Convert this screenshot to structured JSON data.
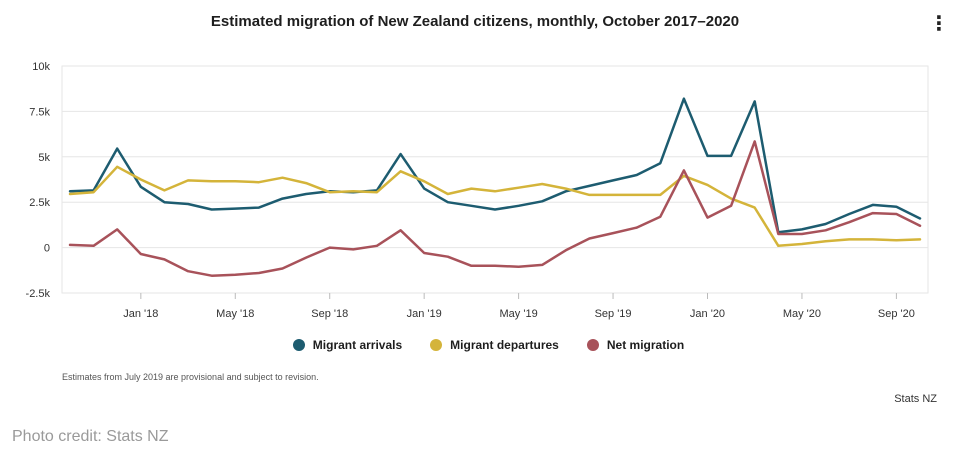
{
  "menu_icon": "⋮",
  "legend": [
    {
      "label": "Migrant arrivals",
      "color": "#1d5c70"
    },
    {
      "label": "Migrant departures",
      "color": "#d4b43a"
    },
    {
      "label": "Net migration",
      "color": "#a8525a"
    }
  ],
  "note": "Estimates from July 2019 are provisional and subject to revision.",
  "source": "Stats NZ",
  "photo_credit": "Photo credit: Stats NZ",
  "chart_data": {
    "type": "line",
    "title": "Estimated migration of New Zealand citizens, monthly, October 2017–2020",
    "xlabel": "",
    "ylabel": "",
    "ylim": [
      -2500,
      10000
    ],
    "yticks": [
      -2500,
      0,
      2500,
      5000,
      7500,
      10000
    ],
    "ytick_labels": [
      "-2.5k",
      "0",
      "2.5k",
      "5k",
      "7.5k",
      "10k"
    ],
    "xtick_labels": [
      "Jan '18",
      "May '18",
      "Sep '18",
      "Jan '19",
      "May '19",
      "Sep '19",
      "Jan '20",
      "May '20",
      "Sep '20"
    ],
    "xtick_month_index": [
      3,
      7,
      11,
      15,
      19,
      23,
      27,
      31,
      35
    ],
    "x": [
      "Oct 2017",
      "Nov 2017",
      "Dec 2017",
      "Jan 2018",
      "Feb 2018",
      "Mar 2018",
      "Apr 2018",
      "May 2018",
      "Jun 2018",
      "Jul 2018",
      "Aug 2018",
      "Sep 2018",
      "Oct 2018",
      "Nov 2018",
      "Dec 2018",
      "Jan 2019",
      "Feb 2019",
      "Mar 2019",
      "Apr 2019",
      "May 2019",
      "Jun 2019",
      "Jul 2019",
      "Aug 2019",
      "Sep 2019",
      "Oct 2019",
      "Nov 2019",
      "Dec 2019",
      "Jan 2020",
      "Feb 2020",
      "Mar 2020",
      "Apr 2020",
      "May 2020",
      "Jun 2020",
      "Jul 2020",
      "Aug 2020",
      "Sep 2020",
      "Oct 2020"
    ],
    "series": [
      {
        "name": "Migrant arrivals",
        "color": "#1d5c70",
        "values": [
          3100,
          3150,
          5450,
          3350,
          2500,
          2400,
          2100,
          2150,
          2200,
          2700,
          2950,
          3100,
          3050,
          3150,
          5150,
          3250,
          2500,
          2300,
          2100,
          2300,
          2550,
          3100,
          3400,
          3700,
          4000,
          4650,
          8200,
          5050,
          5050,
          8050,
          850,
          1000,
          1300,
          1850,
          2350,
          2250,
          1600
        ]
      },
      {
        "name": "Migrant departures",
        "color": "#d4b43a",
        "values": [
          2950,
          3050,
          4450,
          3750,
          3150,
          3700,
          3650,
          3650,
          3600,
          3850,
          3550,
          3050,
          3100,
          3050,
          4200,
          3650,
          2950,
          3250,
          3100,
          3300,
          3500,
          3250,
          2900,
          2900,
          2900,
          2900,
          3950,
          3450,
          2700,
          2200,
          100,
          200,
          350,
          450,
          450,
          400,
          450
        ]
      },
      {
        "name": "Net migration",
        "color": "#a8525a",
        "values": [
          150,
          100,
          1000,
          -350,
          -650,
          -1300,
          -1550,
          -1500,
          -1400,
          -1150,
          -550,
          0,
          -100,
          100,
          950,
          -300,
          -500,
          -1000,
          -1000,
          -1050,
          -950,
          -150,
          500,
          800,
          1100,
          1700,
          4250,
          1650,
          2300,
          5850,
          750,
          750,
          950,
          1400,
          1900,
          1850,
          1200
        ]
      }
    ]
  }
}
